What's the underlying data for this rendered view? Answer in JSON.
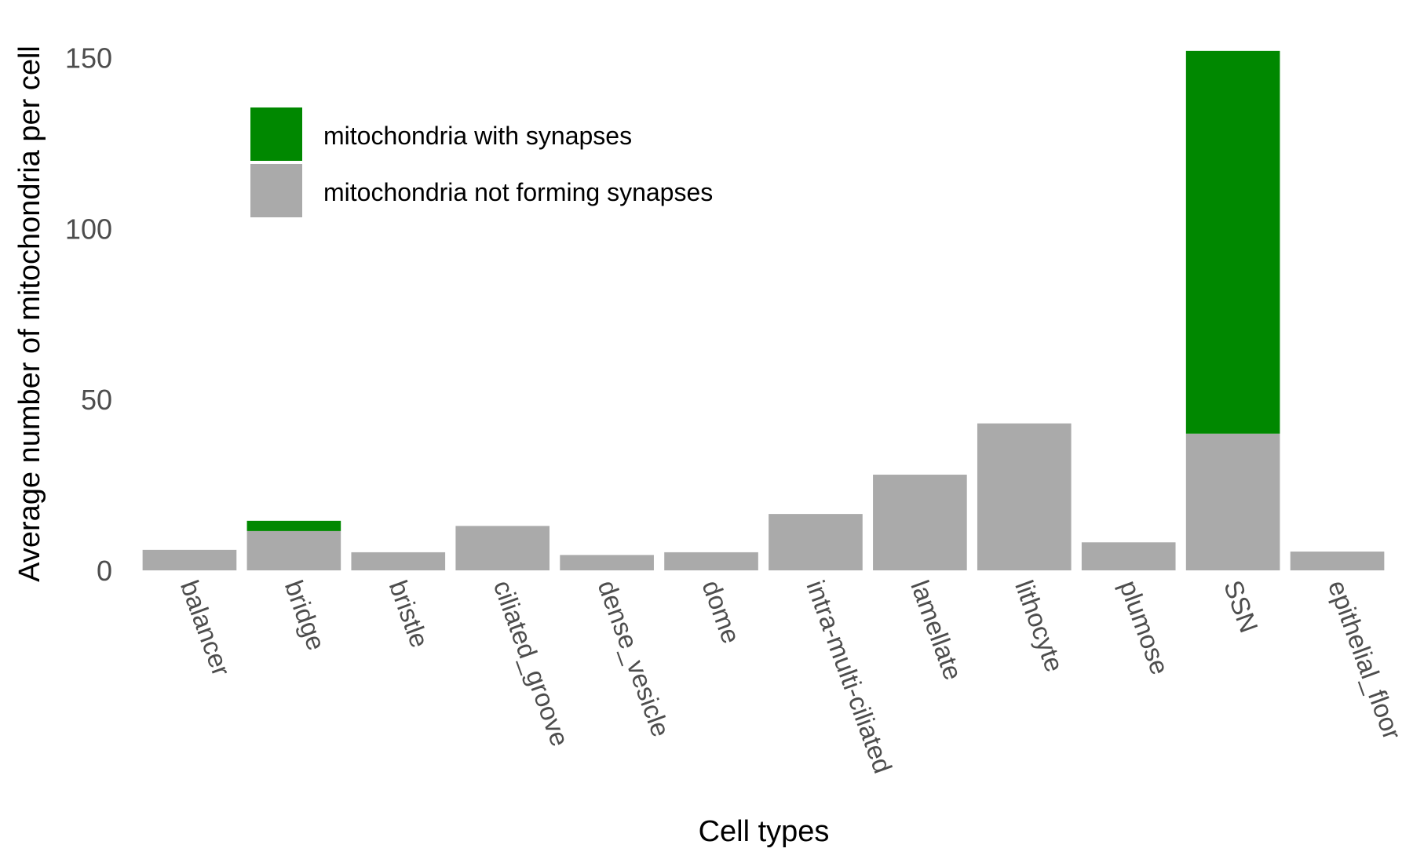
{
  "chart_data": {
    "type": "bar",
    "stacked": true,
    "categories": [
      "balancer",
      "bridge",
      "bristle",
      "ciliated_groove",
      "dense_vesicle",
      "dome",
      "intra-multi-ciliated",
      "lamellate",
      "lithocyte",
      "plumose",
      "SSN",
      "epithelial_floor"
    ],
    "series": [
      {
        "name": "mitochondria not forming synapses",
        "color": "#aaaaaa",
        "values": [
          6,
          11.5,
          5.3,
          13,
          4.5,
          5.3,
          16.5,
          28,
          43,
          8.2,
          40,
          5.5
        ]
      },
      {
        "name": "mitochondria with synapses",
        "color": "#008800",
        "values": [
          0,
          3,
          0,
          0,
          0,
          0,
          0,
          0,
          0,
          0,
          112,
          0
        ]
      }
    ],
    "xlabel": "Cell types",
    "ylabel": "Average number of mitochondria per cell",
    "ylim": [
      0,
      160
    ],
    "yticks": [
      0,
      50,
      100,
      150
    ],
    "grid": false,
    "legend_position": "top-left"
  }
}
